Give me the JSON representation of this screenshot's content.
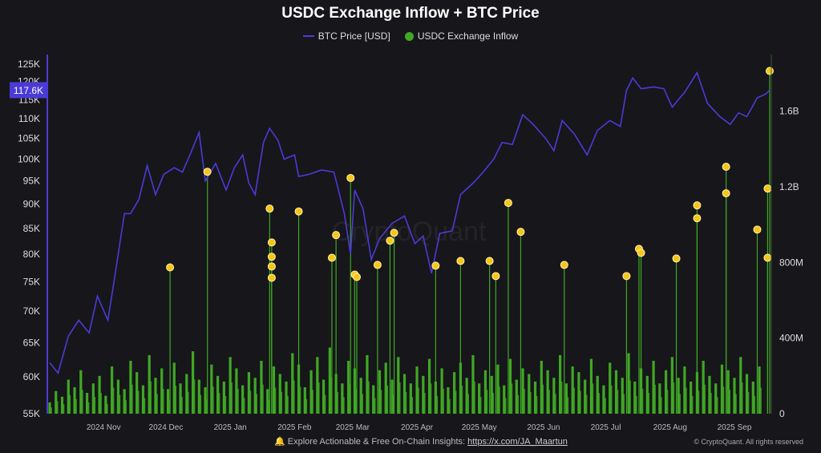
{
  "chart_data": {
    "type": "bar+line",
    "title": "USDC Exchange Inflow + BTC Price",
    "legend": [
      "BTC Price [USD]",
      "USDC Exchange Inflow"
    ],
    "legend_placement": "top-center",
    "colors": {
      "price": "#4b3bd6",
      "inflow": "#3fa823",
      "highlight": "#f5c518",
      "price_label_bg": "#4b3bd6"
    },
    "x_range": [
      "2024-10-06",
      "2025-09-18"
    ],
    "x_ticks": [
      "2024 Nov",
      "2024 Dec",
      "2025 Jan",
      "2025 Feb",
      "2025 Mar",
      "2025 Apr",
      "2025 May",
      "2025 Jun",
      "2025 Jul",
      "2025 Aug",
      "2025 Sep"
    ],
    "x_tick_dates": [
      "2024-11-01",
      "2024-12-01",
      "2025-01-01",
      "2025-02-01",
      "2025-03-01",
      "2025-04-01",
      "2025-05-01",
      "2025-06-01",
      "2025-07-01",
      "2025-08-01",
      "2025-09-01"
    ],
    "y_left": {
      "scale": "log",
      "range": [
        55000,
        125000
      ],
      "ticks": [
        "125K",
        "120K",
        "115K",
        "110K",
        "105K",
        "100K",
        "95K",
        "90K",
        "85K",
        "80K",
        "75K",
        "70K",
        "65K",
        "60K",
        "55K"
      ],
      "tick_values": [
        125000,
        120000,
        115000,
        110000,
        105000,
        100000,
        95000,
        90000,
        85000,
        80000,
        75000,
        70000,
        65000,
        60000,
        55000
      ]
    },
    "y_right": {
      "scale": "linear",
      "range": [
        0,
        1900000000
      ],
      "ticks": [
        "0",
        "400M",
        "800M",
        "1.2B",
        "1.6B"
      ],
      "tick_values": [
        0,
        400000000,
        800000000,
        1200000000,
        1600000000
      ]
    },
    "current_price_label": "117.6K",
    "current_price": 117600,
    "grid": false,
    "btc_price": [
      [
        "2024-10-06",
        62000
      ],
      [
        "2024-10-10",
        60500
      ],
      [
        "2024-10-15",
        66000
      ],
      [
        "2024-10-20",
        68500
      ],
      [
        "2024-10-25",
        66500
      ],
      [
        "2024-10-29",
        72500
      ],
      [
        "2024-11-03",
        68500
      ],
      [
        "2024-11-06",
        75000
      ],
      [
        "2024-11-11",
        88000
      ],
      [
        "2024-11-14",
        88000
      ],
      [
        "2024-11-18",
        91000
      ],
      [
        "2024-11-22",
        98500
      ],
      [
        "2024-11-26",
        92000
      ],
      [
        "2024-11-30",
        96500
      ],
      [
        "2024-12-05",
        98000
      ],
      [
        "2024-12-09",
        97000
      ],
      [
        "2024-12-13",
        101500
      ],
      [
        "2024-12-17",
        106500
      ],
      [
        "2024-12-20",
        95000
      ],
      [
        "2024-12-25",
        99000
      ],
      [
        "2024-12-30",
        93000
      ],
      [
        "2025-01-03",
        98000
      ],
      [
        "2025-01-07",
        101000
      ],
      [
        "2025-01-10",
        94500
      ],
      [
        "2025-01-13",
        92000
      ],
      [
        "2025-01-17",
        104000
      ],
      [
        "2025-01-20",
        107500
      ],
      [
        "2025-01-24",
        104500
      ],
      [
        "2025-01-27",
        100000
      ],
      [
        "2025-02-01",
        101000
      ],
      [
        "2025-02-03",
        96000
      ],
      [
        "2025-02-08",
        96500
      ],
      [
        "2025-02-14",
        97500
      ],
      [
        "2025-02-20",
        97000
      ],
      [
        "2025-02-25",
        88000
      ],
      [
        "2025-02-28",
        80000
      ],
      [
        "2025-03-02",
        93000
      ],
      [
        "2025-03-06",
        89000
      ],
      [
        "2025-03-10",
        79000
      ],
      [
        "2025-03-14",
        83000
      ],
      [
        "2025-03-20",
        86000
      ],
      [
        "2025-03-26",
        87500
      ],
      [
        "2025-03-31",
        82000
      ],
      [
        "2025-04-04",
        83500
      ],
      [
        "2025-04-08",
        76500
      ],
      [
        "2025-04-12",
        84000
      ],
      [
        "2025-04-18",
        84500
      ],
      [
        "2025-04-22",
        92000
      ],
      [
        "2025-04-28",
        94500
      ],
      [
        "2025-05-02",
        96500
      ],
      [
        "2025-05-08",
        100000
      ],
      [
        "2025-05-12",
        104000
      ],
      [
        "2025-05-17",
        103500
      ],
      [
        "2025-05-22",
        111000
      ],
      [
        "2025-05-27",
        108500
      ],
      [
        "2025-06-02",
        105000
      ],
      [
        "2025-06-06",
        102000
      ],
      [
        "2025-06-10",
        109500
      ],
      [
        "2025-06-16",
        106000
      ],
      [
        "2025-06-22",
        101000
      ],
      [
        "2025-06-27",
        107000
      ],
      [
        "2025-07-03",
        109500
      ],
      [
        "2025-07-08",
        108000
      ],
      [
        "2025-07-11",
        117500
      ],
      [
        "2025-07-14",
        121000
      ],
      [
        "2025-07-18",
        118000
      ],
      [
        "2025-07-24",
        118500
      ],
      [
        "2025-07-29",
        118000
      ],
      [
        "2025-08-02",
        113000
      ],
      [
        "2025-08-08",
        117000
      ],
      [
        "2025-08-14",
        122500
      ],
      [
        "2025-08-19",
        114000
      ],
      [
        "2025-08-25",
        110500
      ],
      [
        "2025-08-30",
        108500
      ],
      [
        "2025-09-03",
        111500
      ],
      [
        "2025-09-07",
        110500
      ],
      [
        "2025-09-12",
        115500
      ],
      [
        "2025-09-16",
        116500
      ],
      [
        "2025-09-18",
        117600
      ]
    ],
    "inflow_step_days": 3,
    "inflow_start": "2024-10-06",
    "inflow_musd": [
      60,
      120,
      90,
      180,
      140,
      230,
      110,
      160,
      200,
      95,
      250,
      180,
      130,
      280,
      220,
      150,
      310,
      190,
      240,
      130,
      270,
      160,
      210,
      330,
      180,
      140,
      260,
      200,
      170,
      300,
      240,
      150,
      220,
      190,
      280,
      130,
      250,
      210,
      170,
      320,
      260,
      140,
      230,
      300,
      180,
      350,
      210,
      160,
      280,
      240,
      190,
      310,
      150,
      230,
      270,
      180,
      300,
      210,
      160,
      250,
      200,
      290,
      170,
      240,
      140,
      220,
      270,
      190,
      310,
      160,
      230,
      200,
      260,
      150,
      290,
      180,
      240,
      210,
      170,
      280,
      230,
      190,
      310,
      160,
      250,
      220,
      180,
      290,
      200,
      150,
      270,
      230,
      190,
      320,
      170,
      240,
      200,
      280,
      160,
      230,
      300,
      190,
      250,
      170,
      220,
      280,
      200,
      160,
      260,
      230,
      190,
      300,
      210,
      170,
      250
    ],
    "inflow_highlights": [
      [
        "2024-12-03",
        774
      ],
      [
        "2024-12-21",
        1280
      ],
      [
        "2025-01-20",
        1085
      ],
      [
        "2025-01-21",
        906
      ],
      [
        "2025-01-21",
        830
      ],
      [
        "2025-01-21",
        779
      ],
      [
        "2025-01-21",
        719
      ],
      [
        "2025-02-03",
        1070
      ],
      [
        "2025-02-19",
        825
      ],
      [
        "2025-02-21",
        945
      ],
      [
        "2025-02-28",
        1247
      ],
      [
        "2025-03-02",
        736
      ],
      [
        "2025-03-03",
        723
      ],
      [
        "2025-03-13",
        787
      ],
      [
        "2025-03-19",
        915
      ],
      [
        "2025-03-21",
        957
      ],
      [
        "2025-04-10",
        783
      ],
      [
        "2025-04-22",
        808
      ],
      [
        "2025-05-06",
        808
      ],
      [
        "2025-05-09",
        728
      ],
      [
        "2025-05-15",
        1115
      ],
      [
        "2025-05-21",
        962
      ],
      [
        "2025-06-11",
        787
      ],
      [
        "2025-07-11",
        728
      ],
      [
        "2025-07-17",
        872
      ],
      [
        "2025-07-18",
        851
      ],
      [
        "2025-08-04",
        821
      ],
      [
        "2025-08-14",
        1102
      ],
      [
        "2025-08-14",
        1034
      ],
      [
        "2025-08-28",
        1306
      ],
      [
        "2025-08-28",
        1166
      ],
      [
        "2025-09-12",
        974
      ],
      [
        "2025-09-17",
        825
      ],
      [
        "2025-09-17",
        1191
      ],
      [
        "2025-09-18",
        1813
      ]
    ],
    "highlight_unit": "M USD"
  },
  "watermark": "CryptoQuant",
  "footer": {
    "text": "Explore Actionable & Free On-Chain Insights: ",
    "link": "https://x.com/JA_Maartun",
    "copyright": "© CryptoQuant. All rights reserved"
  }
}
